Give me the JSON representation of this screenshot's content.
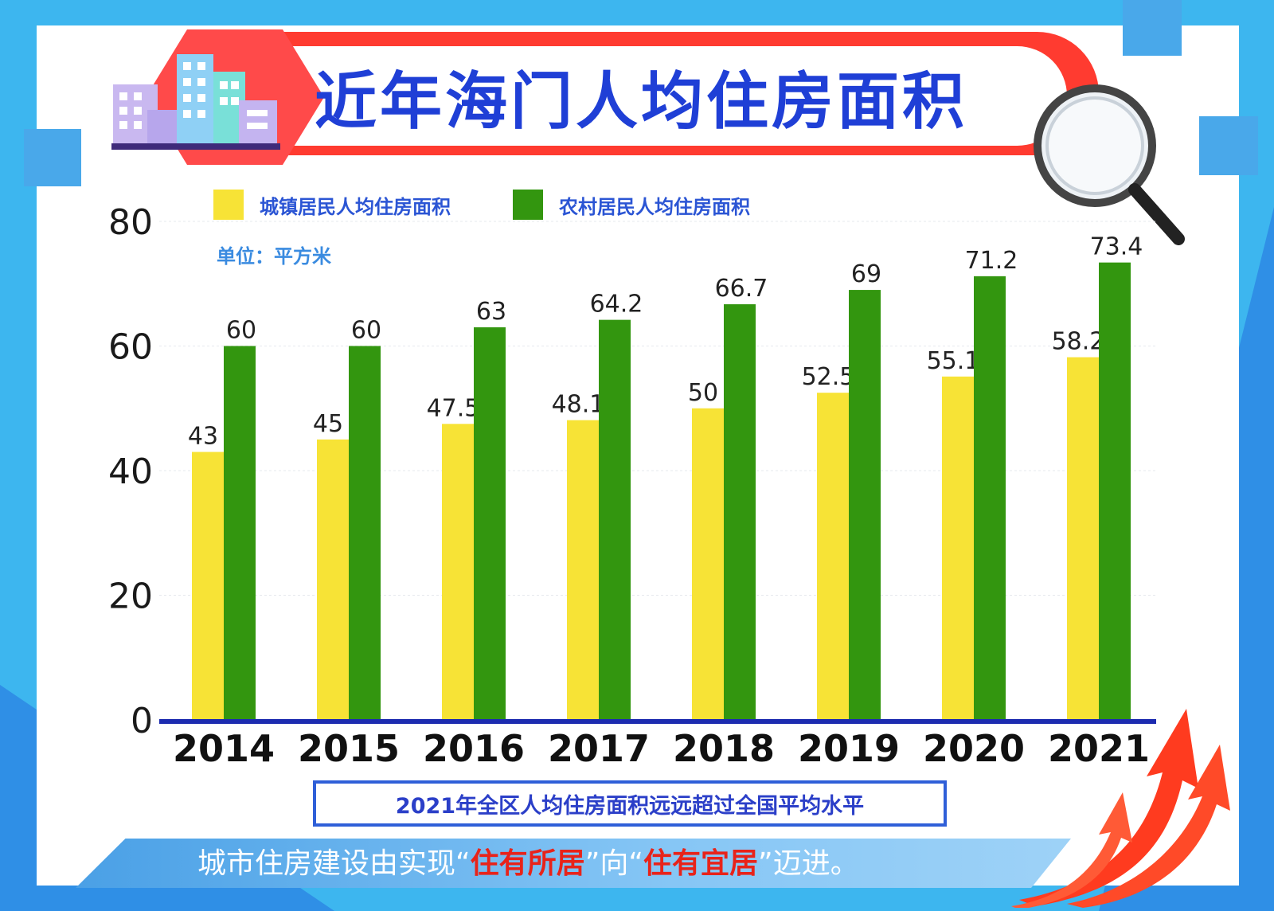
{
  "title": "近年海门人均住房面积",
  "unit_label": "单位：平方米",
  "note": "2021年全区人均住房面积远远超过全国平均水平",
  "banner": {
    "part1": "城市住房建设由实现",
    "q1_open": "“",
    "highlight1": "住有所居",
    "q1_close": "”",
    "part2": "向",
    "q2_open": "“",
    "highlight2": "住有宜居",
    "q2_close": "”",
    "part3": "迈进。"
  },
  "colors": {
    "urban": "#f7e336",
    "rural": "#33960f",
    "axis": "#1c2bb0",
    "accent": "#ff3b30",
    "title": "#1f3fd6"
  },
  "chart_data": {
    "type": "bar",
    "categories": [
      "2014",
      "2015",
      "2016",
      "2017",
      "2018",
      "2019",
      "2020",
      "2021"
    ],
    "series": [
      {
        "name": "城镇居民人均住房面积",
        "values": [
          43,
          45,
          47.5,
          48.1,
          50,
          52.5,
          55.1,
          58.2
        ],
        "labels": [
          "43",
          "45",
          "47.5",
          "48.1",
          "50",
          "52.5",
          "55.1",
          "58.2"
        ]
      },
      {
        "name": "农村居民人均住房面积",
        "values": [
          60,
          60,
          63,
          64.2,
          66.7,
          69,
          71.2,
          73.4
        ],
        "labels": [
          "60",
          "60",
          "63",
          "64.2",
          "66.7",
          "69",
          "71.2",
          "73.4"
        ]
      }
    ],
    "yticks": [
      "0",
      "20",
      "40",
      "60",
      "80"
    ],
    "ylim": [
      0,
      80
    ],
    "legend": "top-left",
    "grid": true
  }
}
